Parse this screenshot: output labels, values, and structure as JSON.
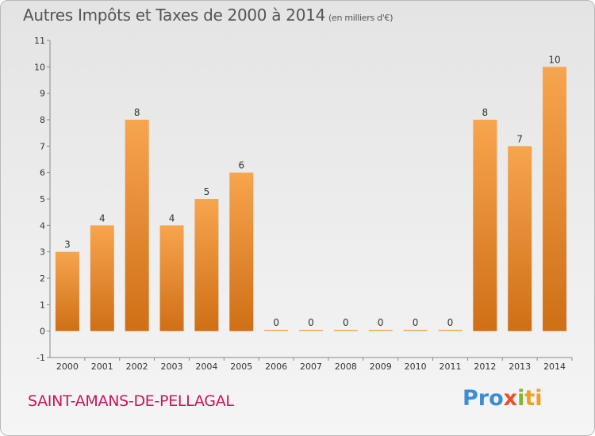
{
  "header": {
    "title": "Autres Impôts et Taxes de 2000 à 2014",
    "unit": "(en milliers d'€)"
  },
  "footer": {
    "commune": "SAINT-AMANS-DE-PELLAGAL",
    "logo": {
      "part1": "Pro",
      "part2": "x",
      "part3": "i",
      "part4": "ti"
    }
  },
  "colors": {
    "bar_top": "#f7a54e",
    "bar_bottom": "#cf6f16",
    "title": "#555555",
    "commune": "#c2185b"
  },
  "chart_data": {
    "type": "bar",
    "title": "Autres Impôts et Taxes de 2000 à 2014",
    "subtitle": "(en milliers d'€)",
    "xlabel": "",
    "ylabel": "",
    "categories": [
      "2000",
      "2001",
      "2002",
      "2003",
      "2004",
      "2005",
      "2006",
      "2007",
      "2008",
      "2009",
      "2010",
      "2011",
      "2012",
      "2013",
      "2014"
    ],
    "values": [
      3,
      4,
      8,
      4,
      5,
      6,
      0,
      0,
      0,
      0,
      0,
      0,
      8,
      7,
      10
    ],
    "yticks": [
      "-1",
      "0",
      "1",
      "2",
      "3",
      "4",
      "5",
      "6",
      "7",
      "8",
      "9",
      "10",
      "11"
    ],
    "ylim": [
      -1,
      11
    ],
    "grid": false,
    "legend": "none"
  }
}
